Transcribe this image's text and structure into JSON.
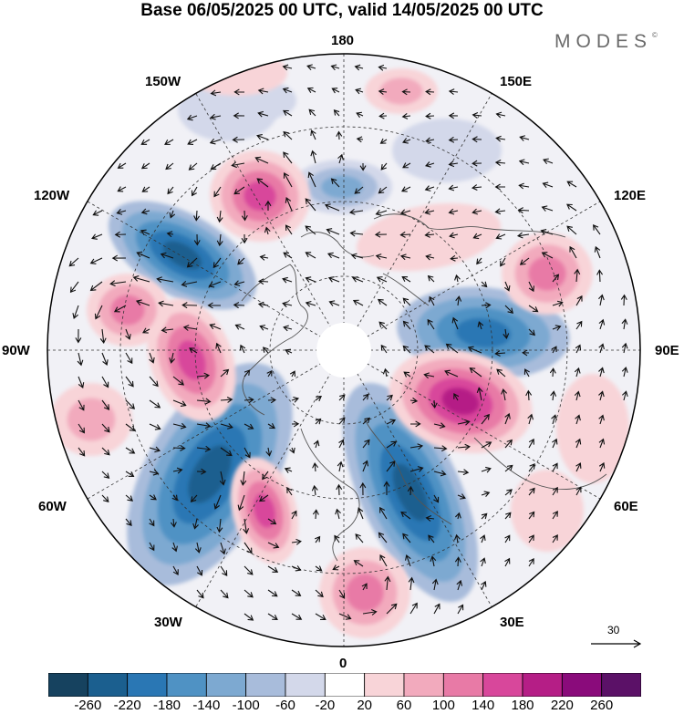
{
  "header": {
    "title": "Base 06/05/2025 00 UTC, valid 14/05/2025 00 UTC",
    "brand": "MODES",
    "brand_mark": "©"
  },
  "map": {
    "projection": "north-polar-stereographic",
    "longitude_labels": {
      "top": "180",
      "upper_left": "150W",
      "upper_right": "150E",
      "left_upper": "120W",
      "right_upper": "120E",
      "left": "90W",
      "right": "90E",
      "left_lower": "60W",
      "right_lower": "60E",
      "lower_left": "30W",
      "lower_right": "30E",
      "bottom": "0"
    },
    "reference_vector": {
      "label": "30"
    }
  },
  "colorbar": {
    "tick_labels": [
      "-260",
      "-220",
      "-180",
      "-140",
      "-100",
      "-60",
      "-20",
      "20",
      "60",
      "100",
      "140",
      "180",
      "220",
      "260"
    ],
    "colors": [
      "#16425f",
      "#1b5f8f",
      "#2a77b4",
      "#4f92c4",
      "#7da9d1",
      "#a8bcdb",
      "#d3d8ea",
      "#ffffff",
      "#f8d4d8",
      "#f2aabd",
      "#e87aa6",
      "#d8479b",
      "#b51e86",
      "#8a0b7b",
      "#5b1167"
    ]
  },
  "colors": {
    "coast": "#555555",
    "grid": "#333333",
    "wind_vector": "#111111"
  }
}
